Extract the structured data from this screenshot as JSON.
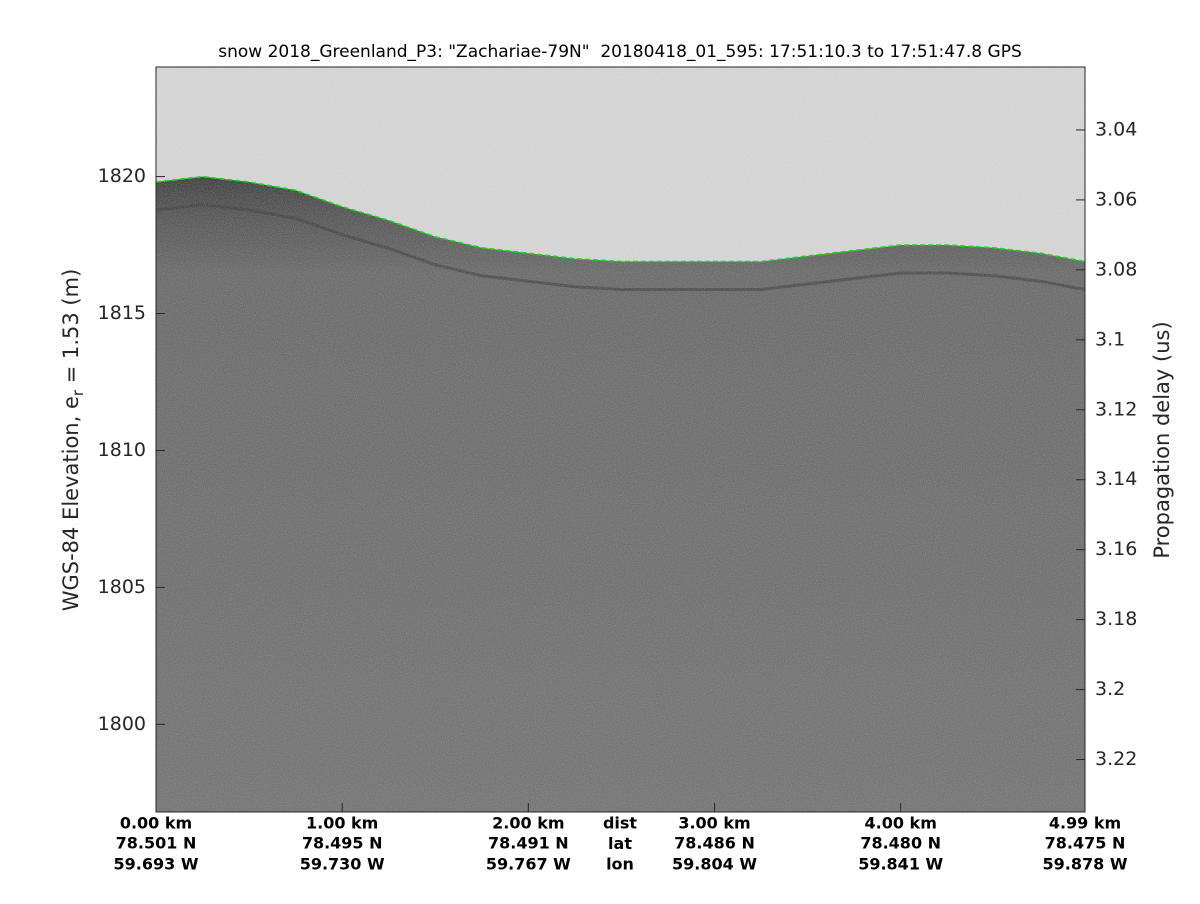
{
  "chart_data": {
    "type": "radargram",
    "title": "snow 2018_Greenland_P3: \"Zachariae-79N\"  20180418_01_595: 17:51:10.3 to 17:51:47.8 GPS",
    "ylabel": {
      "prefix": "WGS-84 Elevation, e",
      "subscript": "r",
      "suffix": " = 1.53 (m)"
    },
    "y2label": "Propagation delay (us)",
    "xlim": [
      0,
      4.99
    ],
    "ylim": [
      1796.8,
      1824
    ],
    "y2lim": [
      3.022,
      3.235
    ],
    "y2_reversed": true,
    "yticks": [
      1800,
      1805,
      1810,
      1815,
      1820
    ],
    "y2ticks": [
      3.04,
      3.06,
      3.08,
      3.1,
      3.12,
      3.14,
      3.16,
      3.18,
      3.2,
      3.22
    ],
    "xticks": [
      {
        "value": 0,
        "label": "0.00 km"
      },
      {
        "value": 1,
        "label": "1.00 km"
      },
      {
        "value": 2,
        "label": "2.00 km"
      },
      {
        "value": 3,
        "label": "3.00 km"
      },
      {
        "value": 4,
        "label": "4.00 km"
      },
      {
        "value": 4.99,
        "label": "4.99 km"
      }
    ],
    "xtick_lat": [
      "78.501 N",
      "78.495 N",
      "78.491 N",
      "78.486 N",
      "78.480 N",
      "78.475 N"
    ],
    "xtick_lon": [
      "59.693 W",
      "59.730 W",
      "59.767 W",
      "59.804 W",
      "59.841 W",
      "59.878 W"
    ],
    "xrow_labels": [
      "dist",
      "lat",
      "lon"
    ],
    "surface": {
      "color": "#00e000",
      "x": [
        0,
        0.25,
        0.5,
        0.75,
        1.0,
        1.25,
        1.5,
        1.75,
        2.0,
        2.25,
        2.5,
        2.75,
        3.0,
        3.25,
        3.5,
        3.75,
        4.0,
        4.25,
        4.5,
        4.75,
        4.99
      ],
      "values": [
        1819.8,
        1820.0,
        1819.8,
        1819.5,
        1818.9,
        1818.4,
        1817.8,
        1817.4,
        1817.2,
        1817.0,
        1816.9,
        1816.9,
        1816.9,
        1816.9,
        1817.1,
        1817.3,
        1817.5,
        1817.5,
        1817.4,
        1817.2,
        1816.9
      ]
    }
  }
}
